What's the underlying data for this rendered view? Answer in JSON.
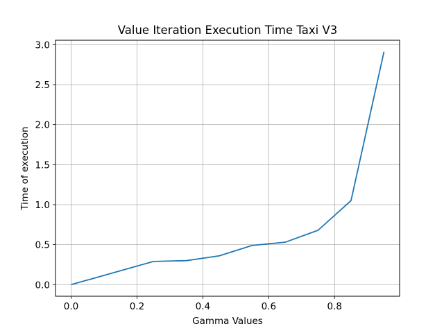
{
  "chart_data": {
    "type": "line",
    "title": "Value Iteration Execution Time Taxi V3",
    "xlabel": "Gamma Values",
    "ylabel": "Time of execution",
    "xlim": [
      -0.0475,
      0.9975
    ],
    "ylim": [
      -0.145,
      3.055
    ],
    "xticks": [
      0.0,
      0.2,
      0.4,
      0.6,
      0.8
    ],
    "xtick_labels": [
      "0.0",
      "0.2",
      "0.4",
      "0.6",
      "0.8"
    ],
    "yticks": [
      0.0,
      0.5,
      1.0,
      1.5,
      2.0,
      2.5,
      3.0
    ],
    "ytick_labels": [
      "0.0",
      "0.5",
      "1.0",
      "1.5",
      "2.0",
      "2.5",
      "3.0"
    ],
    "grid": true,
    "series": [
      {
        "color": "#1f77b4",
        "x": [
          0.0,
          0.25,
          0.35,
          0.45,
          0.55,
          0.65,
          0.75,
          0.85,
          0.95
        ],
        "y": [
          0.0,
          0.29,
          0.3,
          0.36,
          0.49,
          0.53,
          0.68,
          1.05,
          2.91
        ]
      }
    ]
  }
}
